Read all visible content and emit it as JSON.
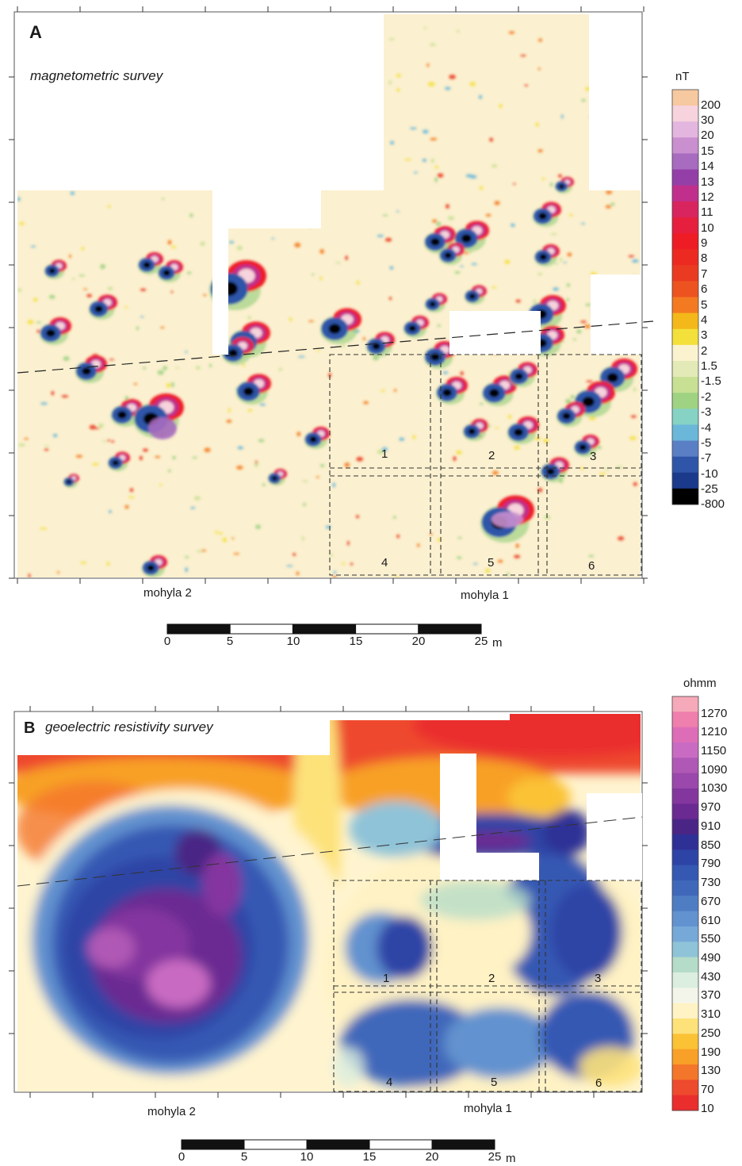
{
  "panel_a": {
    "letter": "A",
    "title": "magnetometric survey",
    "unit": "nT",
    "legend_colors": [
      "#f7c9a0",
      "#f6d3dd",
      "#e3b6e0",
      "#c98fcf",
      "#a76bbf",
      "#943fa8",
      "#c02f8c",
      "#d82560",
      "#e61f3f",
      "#ee1c25",
      "#ec2a22",
      "#ea3a22",
      "#ed5320",
      "#f47a21",
      "#f5b81a",
      "#f4e03a",
      "#fbf3cf",
      "#e4eab7",
      "#c7e093",
      "#9fd283",
      "#86d2c4",
      "#6ab7da",
      "#5b7fc5",
      "#2f55a8",
      "#1b3a8b",
      "#000000"
    ],
    "legend_labels": [
      "200",
      "30",
      "20",
      "15",
      "14",
      "13",
      "12",
      "11",
      "10",
      "9",
      "8",
      "7",
      "6",
      "5",
      "4",
      "3",
      "2",
      "1.5",
      "-1.5",
      "-2",
      "-3",
      "-4",
      "-5",
      "-7",
      "-10",
      "-25",
      "-800"
    ],
    "mound_labels": [
      "mohyla 2",
      "mohyla 1"
    ],
    "trench_numbers": [
      "1",
      "2",
      "3",
      "4",
      "5",
      "6"
    ],
    "scale_labels": [
      "0",
      "5",
      "10",
      "15",
      "20",
      "25"
    ],
    "scale_unit": "m"
  },
  "panel_b": {
    "letter": "B",
    "title": "geoelectric resistivity survey",
    "unit": "ohmm",
    "legend_colors": [
      "#f6a9b8",
      "#ef7fad",
      "#de6db8",
      "#c96bc2",
      "#b058b5",
      "#9a48ab",
      "#84369f",
      "#6a2a92",
      "#4a2585",
      "#2f3096",
      "#2d44a6",
      "#3558b3",
      "#4068ba",
      "#4f7dc4",
      "#6292cf",
      "#77a9d8",
      "#8fc3d8",
      "#b5dcc8",
      "#dbeedf",
      "#f4f5ea",
      "#fff2c4",
      "#fde27a",
      "#fbc236",
      "#f8a028",
      "#f4762a",
      "#ee4a2d",
      "#ea2d2d"
    ],
    "legend_labels": [
      "1270",
      "1210",
      "1150",
      "1090",
      "1030",
      "970",
      "910",
      "850",
      "790",
      "730",
      "670",
      "610",
      "550",
      "490",
      "430",
      "370",
      "310",
      "250",
      "190",
      "130",
      "70",
      "10"
    ],
    "mound_labels": [
      "mohyla 2",
      "mohyla 1"
    ],
    "trench_numbers": [
      "1",
      "2",
      "3",
      "4",
      "5",
      "6"
    ],
    "scale_labels": [
      "0",
      "5",
      "10",
      "15",
      "20",
      "25"
    ],
    "scale_unit": "m"
  }
}
